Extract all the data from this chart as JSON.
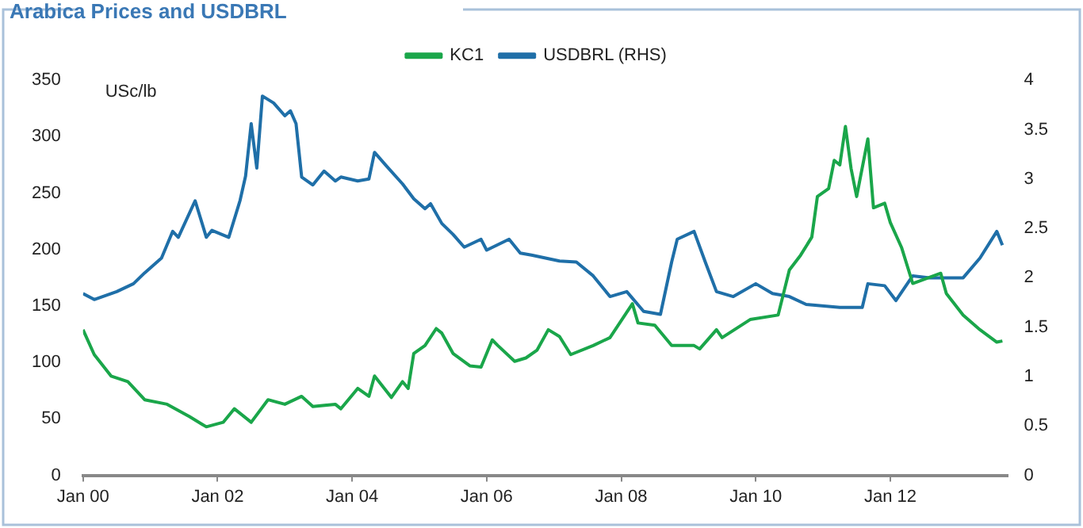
{
  "chart_data": {
    "type": "line",
    "title": "Arabica Prices and USDBRL",
    "ylabel": "USc/lb",
    "xlim": [
      "2000-01",
      "2013-10"
    ],
    "xticks": [
      {
        "value": "2000-01",
        "label": "Jan 00"
      },
      {
        "value": "2002-01",
        "label": "Jan 02"
      },
      {
        "value": "2004-01",
        "label": "Jan 04"
      },
      {
        "value": "2006-01",
        "label": "Jan 06"
      },
      {
        "value": "2008-01",
        "label": "Jan 08"
      },
      {
        "value": "2010-01",
        "label": "Jan 10"
      },
      {
        "value": "2012-01",
        "label": "Jan 12"
      }
    ],
    "ylim": [
      0,
      350
    ],
    "yticks": [
      0,
      50,
      100,
      150,
      200,
      250,
      300,
      350
    ],
    "y2lim": [
      0,
      4
    ],
    "y2ticks": [
      0,
      0.5,
      1,
      1.5,
      2,
      2.5,
      3,
      3.5,
      4
    ],
    "grid": false,
    "legend": "top",
    "marker": "none",
    "line_style": "solid",
    "series": [
      {
        "name": "KC1",
        "color": "#1aa64a",
        "x": [
          "2000-01",
          "2000-03",
          "2000-06",
          "2000-09",
          "2000-12",
          "2001-04",
          "2001-08",
          "2001-11",
          "2002-02",
          "2002-04",
          "2002-07",
          "2002-10",
          "2003-01",
          "2003-04",
          "2003-06",
          "2003-10",
          "2003-11",
          "2004-02",
          "2004-04",
          "2004-05",
          "2004-08",
          "2004-10",
          "2004-11",
          "2004-12",
          "2005-02",
          "2005-04",
          "2005-05",
          "2005-07",
          "2005-10",
          "2005-12",
          "2006-02",
          "2006-03",
          "2006-06",
          "2006-08",
          "2006-10",
          "2006-12",
          "2007-02",
          "2007-04",
          "2007-08",
          "2007-11",
          "2008-03",
          "2008-04",
          "2008-07",
          "2008-10",
          "2009-02",
          "2009-03",
          "2009-06",
          "2009-07",
          "2009-12",
          "2010-05",
          "2010-07",
          "2010-09",
          "2010-11",
          "2010-12",
          "2011-02",
          "2011-03",
          "2011-04",
          "2011-05",
          "2011-06",
          "2011-07",
          "2011-09",
          "2011-10",
          "2011-12",
          "2012-01",
          "2012-03",
          "2012-05",
          "2012-10",
          "2012-11",
          "2013-02",
          "2013-05",
          "2013-08",
          "2013-09"
        ],
        "values": [
          129,
          107,
          88,
          83,
          67,
          63,
          52,
          43,
          47,
          59,
          47,
          67,
          63,
          70,
          61,
          63,
          59,
          77,
          70,
          88,
          69,
          83,
          77,
          108,
          115,
          130,
          126,
          108,
          97,
          96,
          120,
          115,
          101,
          104,
          111,
          129,
          123,
          107,
          115,
          122,
          152,
          135,
          133,
          115,
          115,
          112,
          129,
          122,
          138,
          142,
          182,
          195,
          211,
          247,
          254,
          279,
          275,
          309,
          272,
          247,
          298,
          237,
          241,
          224,
          202,
          170,
          179,
          161,
          142,
          129,
          118,
          119
        ]
      },
      {
        "name": "USDBRL (RHS)",
        "color": "#1f6fa8",
        "axis": "y2",
        "x": [
          "2000-01",
          "2000-03",
          "2000-07",
          "2000-10",
          "2000-12",
          "2001-03",
          "2001-05",
          "2001-06",
          "2001-09",
          "2001-11",
          "2001-12",
          "2002-03",
          "2002-05",
          "2002-06",
          "2002-07",
          "2002-08",
          "2002-09",
          "2002-11",
          "2003-01",
          "2003-02",
          "2003-03",
          "2003-04",
          "2003-06",
          "2003-08",
          "2003-10",
          "2003-11",
          "2004-02",
          "2004-04",
          "2004-05",
          "2004-07",
          "2004-10",
          "2004-12",
          "2005-02",
          "2005-03",
          "2005-05",
          "2005-07",
          "2005-09",
          "2005-12",
          "2006-01",
          "2006-05",
          "2006-07",
          "2006-09",
          "2007-02",
          "2007-05",
          "2007-08",
          "2007-11",
          "2008-02",
          "2008-05",
          "2008-08",
          "2008-10",
          "2008-11",
          "2009-02",
          "2009-04",
          "2009-06",
          "2009-09",
          "2010-01",
          "2010-04",
          "2010-07",
          "2010-10",
          "2011-04",
          "2011-08",
          "2011-09",
          "2011-12",
          "2012-02",
          "2012-05",
          "2012-08",
          "2013-02",
          "2013-05",
          "2013-08",
          "2013-09"
        ],
        "values": [
          1.84,
          1.78,
          1.86,
          1.94,
          2.05,
          2.2,
          2.47,
          2.41,
          2.78,
          2.41,
          2.48,
          2.41,
          2.78,
          3.03,
          3.56,
          3.11,
          3.84,
          3.77,
          3.64,
          3.69,
          3.56,
          3.02,
          2.94,
          3.08,
          2.98,
          3.02,
          2.98,
          3.0,
          3.27,
          3.14,
          2.95,
          2.8,
          2.7,
          2.75,
          2.55,
          2.44,
          2.31,
          2.39,
          2.28,
          2.39,
          2.25,
          2.23,
          2.17,
          2.16,
          2.02,
          1.81,
          1.86,
          1.66,
          1.63,
          2.16,
          2.39,
          2.47,
          2.16,
          1.86,
          1.81,
          1.94,
          1.84,
          1.81,
          1.73,
          1.7,
          1.7,
          1.94,
          1.92,
          1.77,
          2.02,
          2.0,
          2.0,
          2.2,
          2.47,
          2.33
        ]
      }
    ]
  }
}
